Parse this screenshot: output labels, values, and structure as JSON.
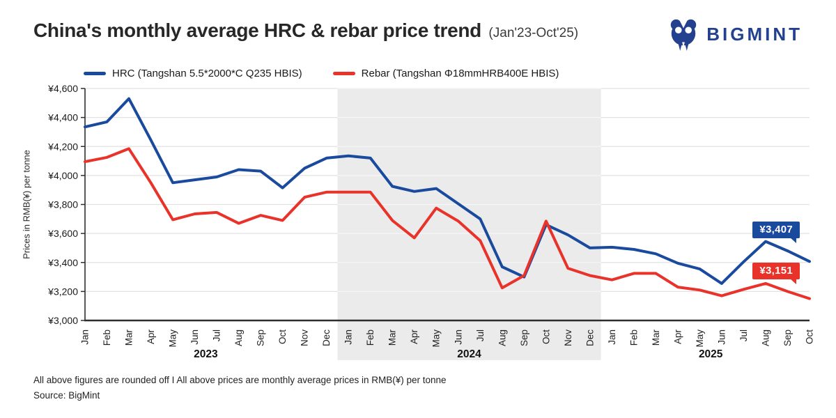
{
  "header": {
    "title": "China's monthly average HRC & rebar price trend",
    "subtitle": "(Jan'23-Oct'25)",
    "logo_text": "BIGMINT"
  },
  "colors": {
    "hrc_blue": "#1a4a9e",
    "rebar_red": "#e8322a",
    "brand_navy": "#24418f",
    "band_gray": "#ebebeb",
    "grid_gray": "#e2e2e2",
    "band_grid": "#f7f7f7",
    "axis_dark": "#2d2d2d"
  },
  "legend": [
    {
      "label": "HRC (Tangshan 5.5*2000*C Q235 HBIS)",
      "color": "#1a4a9e"
    },
    {
      "label": "Rebar (Tangshan Φ18mmHRB400E HBIS)",
      "color": "#e8322a"
    }
  ],
  "chart_data": {
    "type": "line",
    "title": "China's monthly average HRC & rebar price trend (Jan'23-Oct'25)",
    "xlabel": "",
    "ylabel": "Prices in RMB(¥) per tonne",
    "ylim": [
      3000,
      4600
    ],
    "ytick_step": 200,
    "grid": true,
    "legend_position": "top",
    "years": [
      {
        "label": "2023",
        "months": 12,
        "shaded": false
      },
      {
        "label": "2024",
        "months": 12,
        "shaded": true
      },
      {
        "label": "2025",
        "months": 10,
        "shaded": false
      }
    ],
    "months": [
      "Jan",
      "Feb",
      "Mar",
      "Apr",
      "May",
      "Jun",
      "Jul",
      "Aug",
      "Sep",
      "Oct",
      "Nov",
      "Dec",
      "Jan",
      "Feb",
      "Mar",
      "Apr",
      "May",
      "Jun",
      "Jul",
      "Aug",
      "Sep",
      "Oct",
      "Nov",
      "Dec",
      "Jan",
      "Feb",
      "Mar",
      "Apr",
      "May",
      "Jun",
      "Jul",
      "Aug",
      "Sep",
      "Oct"
    ],
    "series": [
      {
        "name": "HRC (Tangshan 5.5*2000*C Q235 HBIS)",
        "color": "#1a4a9e",
        "values": [
          4335,
          4370,
          4530,
          4245,
          3950,
          3970,
          3990,
          4040,
          4030,
          3915,
          4050,
          4120,
          4135,
          4120,
          3925,
          3890,
          3910,
          3805,
          3700,
          3370,
          3300,
          3660,
          3590,
          3500,
          3505,
          3490,
          3460,
          3395,
          3355,
          3255,
          3405,
          3545,
          3480,
          3407
        ]
      },
      {
        "name": "Rebar (Tangshan Φ18mmHRB400E HBIS)",
        "color": "#e8322a",
        "values": [
          4095,
          4125,
          4185,
          3950,
          3695,
          3735,
          3745,
          3670,
          3725,
          3690,
          3850,
          3885,
          3885,
          3885,
          3690,
          3570,
          3775,
          3685,
          3550,
          3225,
          3310,
          3685,
          3360,
          3310,
          3280,
          3325,
          3325,
          3230,
          3210,
          3170,
          3215,
          3255,
          3200,
          3151
        ]
      }
    ],
    "end_labels": [
      {
        "text": "¥3,407",
        "color": "#1a4a9e"
      },
      {
        "text": "¥3,151",
        "color": "#e8322a"
      }
    ]
  },
  "footer": {
    "note": "All above figures are rounded off  I  All above prices are monthly average prices in RMB(¥) per tonne",
    "source": "Source: BigMint"
  }
}
